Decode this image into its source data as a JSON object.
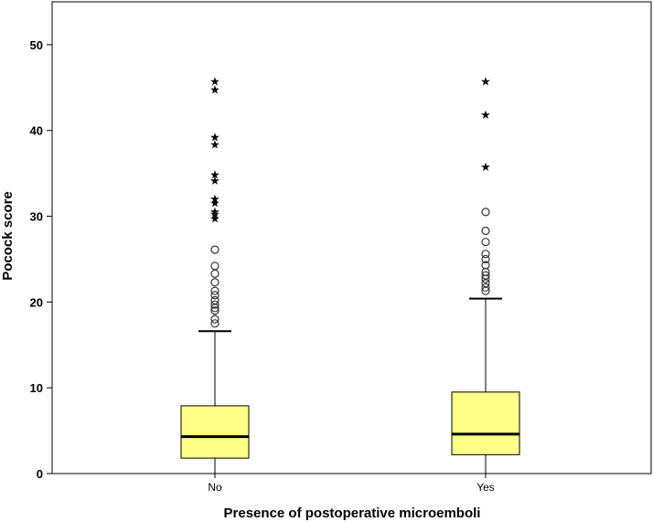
{
  "chart_data": {
    "type": "boxplot",
    "title": "",
    "xlabel": "Presence of postoperative microemboli",
    "ylabel": "Pocock score",
    "ylim": [
      0,
      55
    ],
    "yticks": [
      0,
      10,
      20,
      30,
      40,
      50
    ],
    "grid": false,
    "box_color": "#ffff88",
    "categories": [
      "No",
      "Yes"
    ],
    "boxes": [
      {
        "category": "No",
        "whisker_low": 0,
        "q1": 1.8,
        "median": 4.3,
        "q3": 7.9,
        "whisker_high": 16.6,
        "outliers": [
          17.5,
          18.0,
          19.0,
          19.3,
          19.7,
          20.2,
          20.8,
          21.3,
          22.3,
          23.3,
          24.2,
          26.1
        ],
        "extremes": [
          29.8,
          30.3,
          30.6,
          31.6,
          32.1,
          34.2,
          34.9,
          38.4,
          39.3,
          44.8,
          45.8
        ]
      },
      {
        "category": "Yes",
        "whisker_low": 0,
        "q1": 2.2,
        "median": 4.6,
        "q3": 9.5,
        "whisker_high": 20.4,
        "outliers": [
          21.3,
          21.7,
          22.2,
          22.7,
          23.1,
          23.5,
          24.3,
          25.0,
          25.6,
          27.0,
          28.3,
          30.5
        ],
        "extremes": [
          35.8,
          41.9,
          45.8
        ]
      }
    ]
  }
}
